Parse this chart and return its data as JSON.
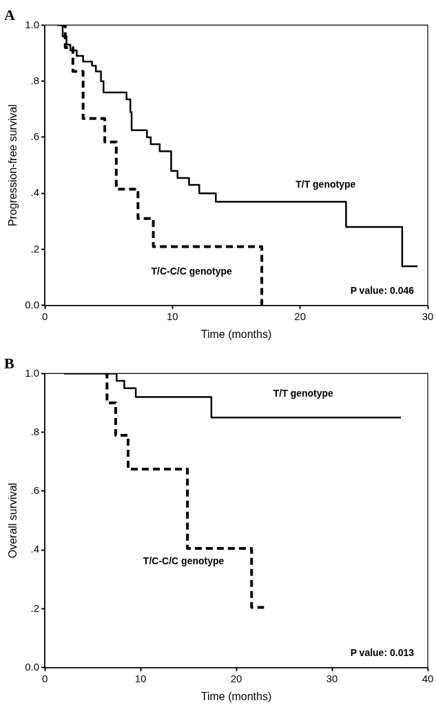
{
  "chart_data": [
    {
      "type": "step",
      "title": "A",
      "xlabel": "Time (months)",
      "ylabel": "Progression-free survival",
      "xlim": [
        0,
        30
      ],
      "xticks": [
        0,
        10,
        20,
        30
      ],
      "ylim": [
        0,
        1
      ],
      "yticks": [
        {
          "value": 0,
          "label": "0.0"
        },
        {
          "value": 0.2,
          "label": ".2"
        },
        {
          "value": 0.4,
          "label": ".4"
        },
        {
          "value": 0.6,
          "label": ".6"
        },
        {
          "value": 0.8,
          "label": ".8"
        },
        {
          "value": 1,
          "label": "1.0"
        }
      ],
      "grid": false,
      "legend": false,
      "annotations": [
        "P value: 0.046"
      ],
      "series": [
        {
          "name": "T/T genotype",
          "color": "#000000",
          "line_style": "solid",
          "x": [
            1.0,
            1.4,
            1.7,
            2.0,
            2.5,
            3.0,
            3.7,
            4.0,
            4.4,
            4.6,
            6.4,
            6.7,
            6.8,
            8.0,
            8.3,
            9.0,
            9.9,
            10.4,
            11.3,
            12.1,
            13.4,
            23.6,
            28.0,
            29.2
          ],
          "values": [
            1,
            0.96,
            0.93,
            0.91,
            0.89,
            0.87,
            0.855,
            0.835,
            0.8,
            0.76,
            0.735,
            0.69,
            0.625,
            0.6,
            0.575,
            0.55,
            0.48,
            0.455,
            0.43,
            0.4,
            0.37,
            0.28,
            0.14,
            0.14
          ]
        },
        {
          "name": "T/C-C/C genotype",
          "color": "#000000",
          "line_style": "dashed",
          "x": [
            1.3,
            1.6,
            2.2,
            3.0,
            4.7,
            5.6,
            7.3,
            8.5,
            17.0
          ],
          "values": [
            1,
            0.92,
            0.835,
            0.667,
            0.583,
            0.415,
            0.31,
            0.21,
            0
          ]
        }
      ]
    },
    {
      "type": "step",
      "title": "B",
      "xlabel": "Time (months)",
      "ylabel": "Overall survival",
      "xlim": [
        0,
        40
      ],
      "xticks": [
        0,
        10,
        20,
        30,
        40
      ],
      "ylim": [
        0,
        1
      ],
      "yticks": [
        {
          "value": 0,
          "label": "0.0"
        },
        {
          "value": 0.2,
          "label": ".2"
        },
        {
          "value": 0.4,
          "label": ".4"
        },
        {
          "value": 0.6,
          "label": ".6"
        },
        {
          "value": 0.8,
          "label": ".8"
        },
        {
          "value": 1,
          "label": "1.0"
        }
      ],
      "grid": false,
      "legend": false,
      "annotations": [
        "P value: 0.013"
      ],
      "series": [
        {
          "name": "T/T genotype",
          "color": "#000000",
          "line_style": "solid",
          "x": [
            2.0,
            7.5,
            8.3,
            9.5,
            17.4,
            37.2
          ],
          "values": [
            1,
            0.975,
            0.95,
            0.92,
            0.85,
            0.85
          ]
        },
        {
          "name": "T/C-C/C genotype",
          "color": "#000000",
          "line_style": "dashed",
          "x": [
            6.3,
            6.5,
            7.4,
            8.7,
            14.9,
            21.6,
            22.9
          ],
          "values": [
            1,
            0.9,
            0.79,
            0.675,
            0.405,
            0.205,
            0.205
          ]
        }
      ]
    }
  ]
}
